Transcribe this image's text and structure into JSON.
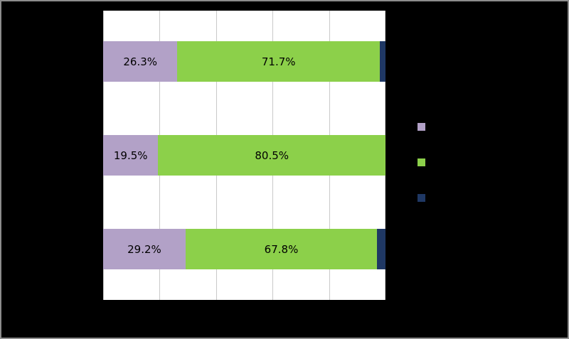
{
  "colors": {
    "background": "#000000",
    "plot_background": "#ffffff",
    "gridline": "#c9c9c9",
    "frame_border": "#8c8c8c",
    "label_text": "#000000",
    "series_purple": "#b2a1c7",
    "series_green": "#8cd04a",
    "series_navy": "#1f3864"
  },
  "chart_data": {
    "type": "bar",
    "orientation": "horizontal",
    "stacked": true,
    "title": "",
    "xlabel": "",
    "ylabel": "",
    "x_axis": {
      "min": 0,
      "max": 100,
      "gridline_interval": 20,
      "grid": true
    },
    "categories": [
      "",
      "",
      ""
    ],
    "bars": [
      {
        "category": "",
        "segments": [
          {
            "series": 1,
            "value": 26.3,
            "label": "26.3%"
          },
          {
            "series": 2,
            "value": 71.7,
            "label": "71.7%"
          },
          {
            "series": 3,
            "value": 2.0,
            "label": ""
          }
        ]
      },
      {
        "category": "",
        "segments": [
          {
            "series": 1,
            "value": 19.5,
            "label": "19.5%"
          },
          {
            "series": 2,
            "value": 80.5,
            "label": "80.5%"
          },
          {
            "series": 3,
            "value": 0.0,
            "label": ""
          }
        ]
      },
      {
        "category": "",
        "segments": [
          {
            "series": 1,
            "value": 29.2,
            "label": "29.2%"
          },
          {
            "series": 2,
            "value": 67.8,
            "label": "67.8%"
          },
          {
            "series": 3,
            "value": 3.0,
            "label": ""
          }
        ]
      }
    ],
    "legend": {
      "position": "right",
      "entries": [
        {
          "label": "",
          "color": "#b2a1c7"
        },
        {
          "label": "",
          "color": "#8cd04a"
        },
        {
          "label": "",
          "color": "#1f3864"
        }
      ]
    }
  }
}
